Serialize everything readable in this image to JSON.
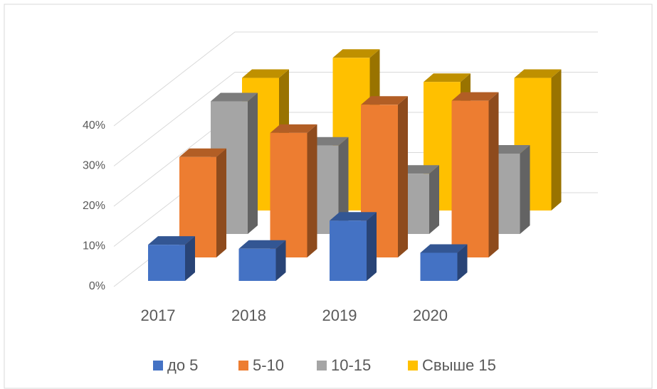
{
  "chart_data": {
    "type": "bar3d",
    "categories": [
      "2017",
      "2018",
      "2019",
      "2020"
    ],
    "series": [
      {
        "name": "до 5",
        "color": "#4472c4",
        "values": [
          9,
          8,
          15,
          7
        ]
      },
      {
        "name": "5-10",
        "color": "#ed7d31",
        "values": [
          25,
          31,
          38,
          39
        ]
      },
      {
        "name": "10-15",
        "color": "#a5a5a5",
        "values": [
          33,
          22,
          15,
          20
        ]
      },
      {
        "name": "Свыше 15",
        "color": "#ffc000",
        "values": [
          33,
          38,
          32,
          33
        ]
      }
    ],
    "ylim": [
      0,
      40
    ],
    "yticks": [
      {
        "value": 0,
        "label": "0%"
      },
      {
        "value": 10,
        "label": "10%"
      },
      {
        "value": 20,
        "label": "20%"
      },
      {
        "value": 30,
        "label": "30%"
      },
      {
        "value": 40,
        "label": "40%"
      }
    ],
    "grid": true,
    "legend": "bottom"
  }
}
